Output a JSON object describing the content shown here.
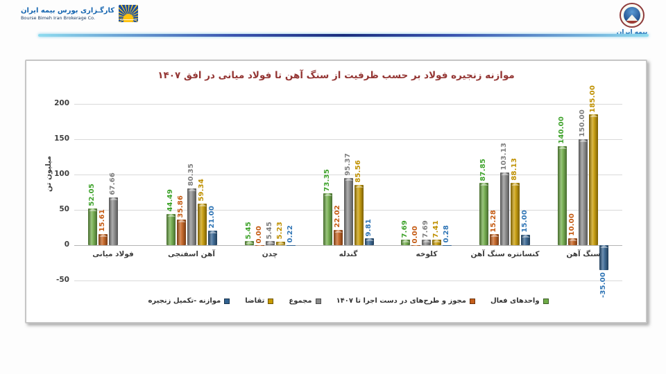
{
  "header": {
    "left_logo": {
      "fa": "کارگـزاری بورس بیمه ایران",
      "en": "Bourse Bimeh Iran Brokerage Co."
    },
    "right_logo": {
      "label": "بیمه ایران"
    }
  },
  "chart_data": {
    "type": "bar",
    "title": "موازنه زنجیره فولاد بر حسب ظرفیت از سنگ آهن تا فولاد میانی در افق ۱۴۰۷",
    "ylabel": "میلیون تن",
    "yticks": [
      200,
      150,
      100,
      50,
      0,
      -50
    ],
    "ylim": [
      -50,
      215
    ],
    "grid": true,
    "legend_position": "bottom",
    "categories": [
      "فولاد میانی",
      "آهن اسفنجی",
      "چدن",
      "گندله",
      "کلوخه",
      "کنسانتره سنگ آهن",
      "سنگ آهن"
    ],
    "series": [
      {
        "name": "واحدهای فعال",
        "color": "#6FAC47",
        "label_color": "#3FA32C",
        "values": [
          52.05,
          44.49,
          5.45,
          73.35,
          7.69,
          87.85,
          140.0
        ]
      },
      {
        "name": "مجوز و طرح‌های در دست اجرا تا ۱۴۰۷",
        "color": "#C55F1B",
        "label_color": "#C55A11",
        "values": [
          15.61,
          35.86,
          0.0,
          22.02,
          0.0,
          15.28,
          10.0
        ]
      },
      {
        "name": "مجموع",
        "color": "#8A8A8A",
        "label_color": "#7F7F7F",
        "values": [
          67.66,
          80.35,
          5.45,
          95.37,
          7.69,
          103.13,
          150.0
        ]
      },
      {
        "name": "تقاضا",
        "color": "#C79A00",
        "label_color": "#BF9000",
        "values": [
          null,
          59.34,
          5.23,
          85.56,
          7.41,
          88.13,
          185.0
        ]
      },
      {
        "name": "موازنه -تکمیل زنجیره",
        "color": "#31618F",
        "label_color": "#2E74B5",
        "values": [
          null,
          21.0,
          0.22,
          9.81,
          0.28,
          15.0,
          -35.0
        ]
      }
    ],
    "legend_order": [
      4,
      3,
      2,
      1,
      0
    ]
  }
}
